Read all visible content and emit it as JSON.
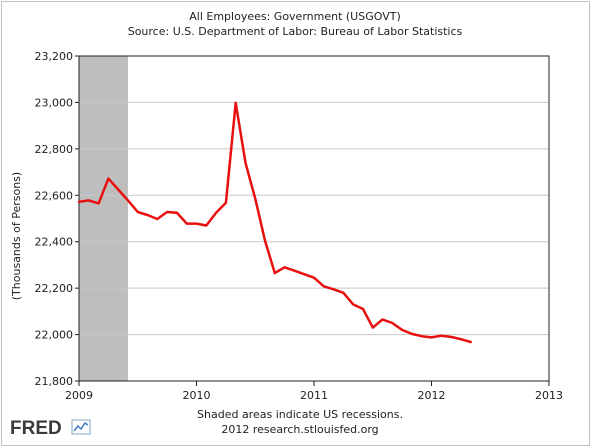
{
  "chart_data": {
    "type": "line",
    "title": "All Employees: Government (USGOVT)",
    "subtitle": "Source: U.S. Department of Labor: Bureau of Labor Statistics",
    "xlabel": "",
    "ylabel": "(Thousands of Persons)",
    "xlim": [
      2009,
      2013
    ],
    "ylim": [
      21800,
      23200
    ],
    "x_ticks": [
      2009,
      2010,
      2011,
      2012,
      2013
    ],
    "x_tick_labels": [
      "2009",
      "2010",
      "2011",
      "2012",
      "2013"
    ],
    "y_ticks": [
      21800,
      22000,
      22200,
      22400,
      22600,
      22800,
      23000,
      23200
    ],
    "y_tick_labels": [
      "21,800",
      "22,000",
      "22,200",
      "22,400",
      "22,600",
      "22,800",
      "23,000",
      "23,200"
    ],
    "grid": true,
    "recession": {
      "start": 2009.0,
      "end": 2009.4167
    },
    "series": [
      {
        "color": "#e8100f",
        "x": [
          2009.0,
          2009.0833,
          2009.1667,
          2009.25,
          2009.3333,
          2009.4167,
          2009.5,
          2009.5833,
          2009.6667,
          2009.75,
          2009.8333,
          2009.9167,
          2010.0,
          2010.0833,
          2010.1667,
          2010.25,
          2010.3333,
          2010.4167,
          2010.5,
          2010.5833,
          2010.6667,
          2010.75,
          2010.8333,
          2010.9167,
          2011.0,
          2011.0833,
          2011.1667,
          2011.25,
          2011.3333,
          2011.4167,
          2011.5,
          2011.5833,
          2011.6667,
          2011.75,
          2011.8333,
          2011.9167,
          2012.0,
          2012.0833,
          2012.1667,
          2012.25,
          2012.3333
        ],
        "values": [
          22572,
          22578,
          22565,
          22672,
          22625,
          22578,
          22528,
          22515,
          22498,
          22528,
          22525,
          22478,
          22478,
          22470,
          22525,
          22568,
          22998,
          22740,
          22585,
          22405,
          22265,
          22290,
          22275,
          22260,
          22245,
          22208,
          22195,
          22180,
          22130,
          22110,
          22030,
          22065,
          22050,
          22020,
          22003,
          21993,
          21988,
          21995,
          21990,
          21980,
          21968
        ]
      }
    ]
  },
  "footer": {
    "note": "Shaded areas indicate US recessions.",
    "source": "2012 research.stlouisfed.org"
  },
  "logo": {
    "text": "FRED"
  },
  "colors": {
    "line": "#e8100f",
    "recession": "#bebebe",
    "grid": "#c8c8c8"
  }
}
